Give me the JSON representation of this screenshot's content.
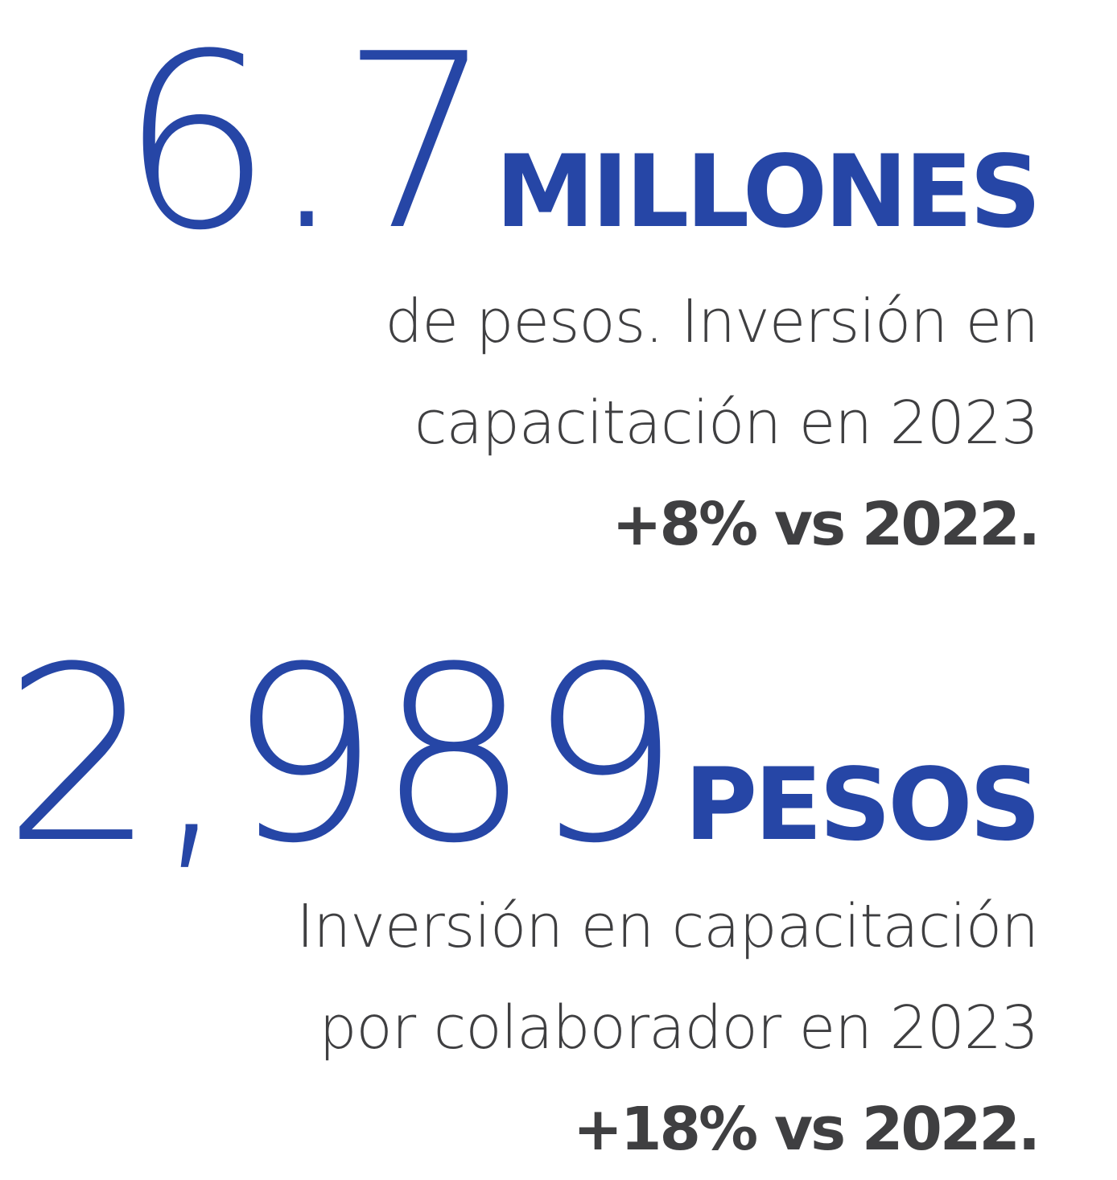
{
  "stat_1": {
    "number": "6.7",
    "unit": "MILLONES",
    "lines": [
      "de pesos. Inversión en",
      "capacitación en 2023"
    ],
    "change": "+8% vs 2022."
  },
  "stat_2": {
    "number": "2,989",
    "unit": "PESOS",
    "lines": [
      "Inversión en capacitación",
      "por colaborador en 2023"
    ],
    "change": "+18% vs 2022."
  },
  "colors": {
    "accent_blue": "#2646a6",
    "text_gray": "#3f3f41",
    "background": "#ffffff"
  }
}
